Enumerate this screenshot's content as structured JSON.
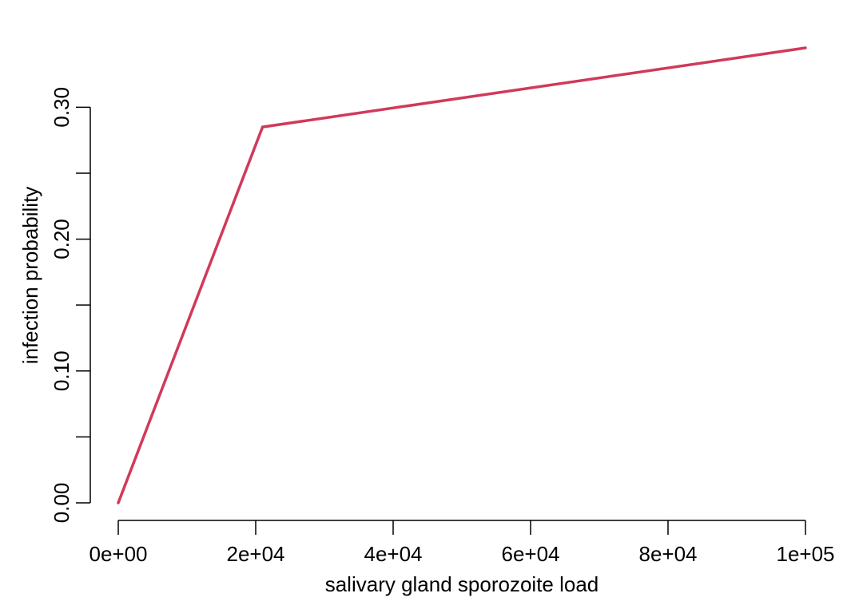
{
  "chart_data": {
    "type": "line",
    "title": "",
    "xlabel": "salivary gland sporozoite load",
    "ylabel": "infection probability",
    "xlim": [
      0,
      100000
    ],
    "ylim": [
      0,
      0.345
    ],
    "x_ticks": [
      0,
      20000,
      40000,
      60000,
      80000,
      100000
    ],
    "x_tick_labels": [
      "0e+00",
      "2e+04",
      "4e+04",
      "6e+04",
      "8e+04",
      "1e+05"
    ],
    "y_ticks": [
      0,
      0.05,
      0.1,
      0.15,
      0.2,
      0.25,
      0.3
    ],
    "y_tick_labels": [
      "0.00",
      "",
      "0.10",
      "",
      "0.20",
      "",
      "0.30"
    ],
    "series": [
      {
        "color": "#d1395a",
        "x": [
          0,
          21000,
          100000
        ],
        "y": [
          0,
          0.285,
          0.345
        ]
      }
    ],
    "grid": false,
    "legend": "none"
  }
}
